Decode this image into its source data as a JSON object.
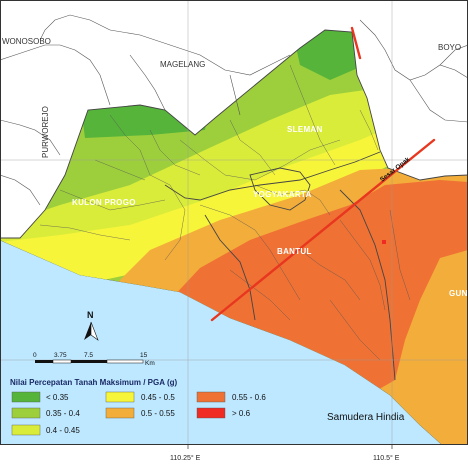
{
  "places": {
    "wonosobo": "WONOSOBO",
    "boyolali": "BOYO",
    "magelang": "MAGELANG",
    "purworejo": "PURWOREJO",
    "gunung": "GUN"
  },
  "regions": {
    "sleman": "SLEMAN",
    "yogyakarta": "YOGYAKARTA",
    "kulon_progo": "KULON PROGO",
    "bantul": "BANTUL"
  },
  "fault": {
    "label": "Sesar Opak",
    "color": "#e8361f"
  },
  "sea": {
    "label": "Samudera Hindia",
    "color": "#bee8ff"
  },
  "compass": {
    "label": "N"
  },
  "scale": {
    "ticks": [
      "0",
      "3.75",
      "7.5",
      "15"
    ],
    "unit": "Km"
  },
  "coordinates": {
    "x_left": "110.25° E",
    "x_right": "110.5° E"
  },
  "legend": {
    "title": "Nilai Percepatan Tanah Maksimum / PGA (g)",
    "items": [
      {
        "label": "< 0.35",
        "color": "#56b43a"
      },
      {
        "label": "0.35 - 0.4",
        "color": "#9dcf3c"
      },
      {
        "label": "0.4 - 0.45",
        "color": "#d9ec3a"
      },
      {
        "label": "0.45 - 0.5",
        "color": "#f7f53a"
      },
      {
        "label": "0.5 - 0.55",
        "color": "#f3ad3a"
      },
      {
        "label": "> 0.6",
        "color": "#ef2b24"
      },
      {
        "label": "0.55 - 0.6",
        "color": "#ef7134"
      }
    ]
  }
}
